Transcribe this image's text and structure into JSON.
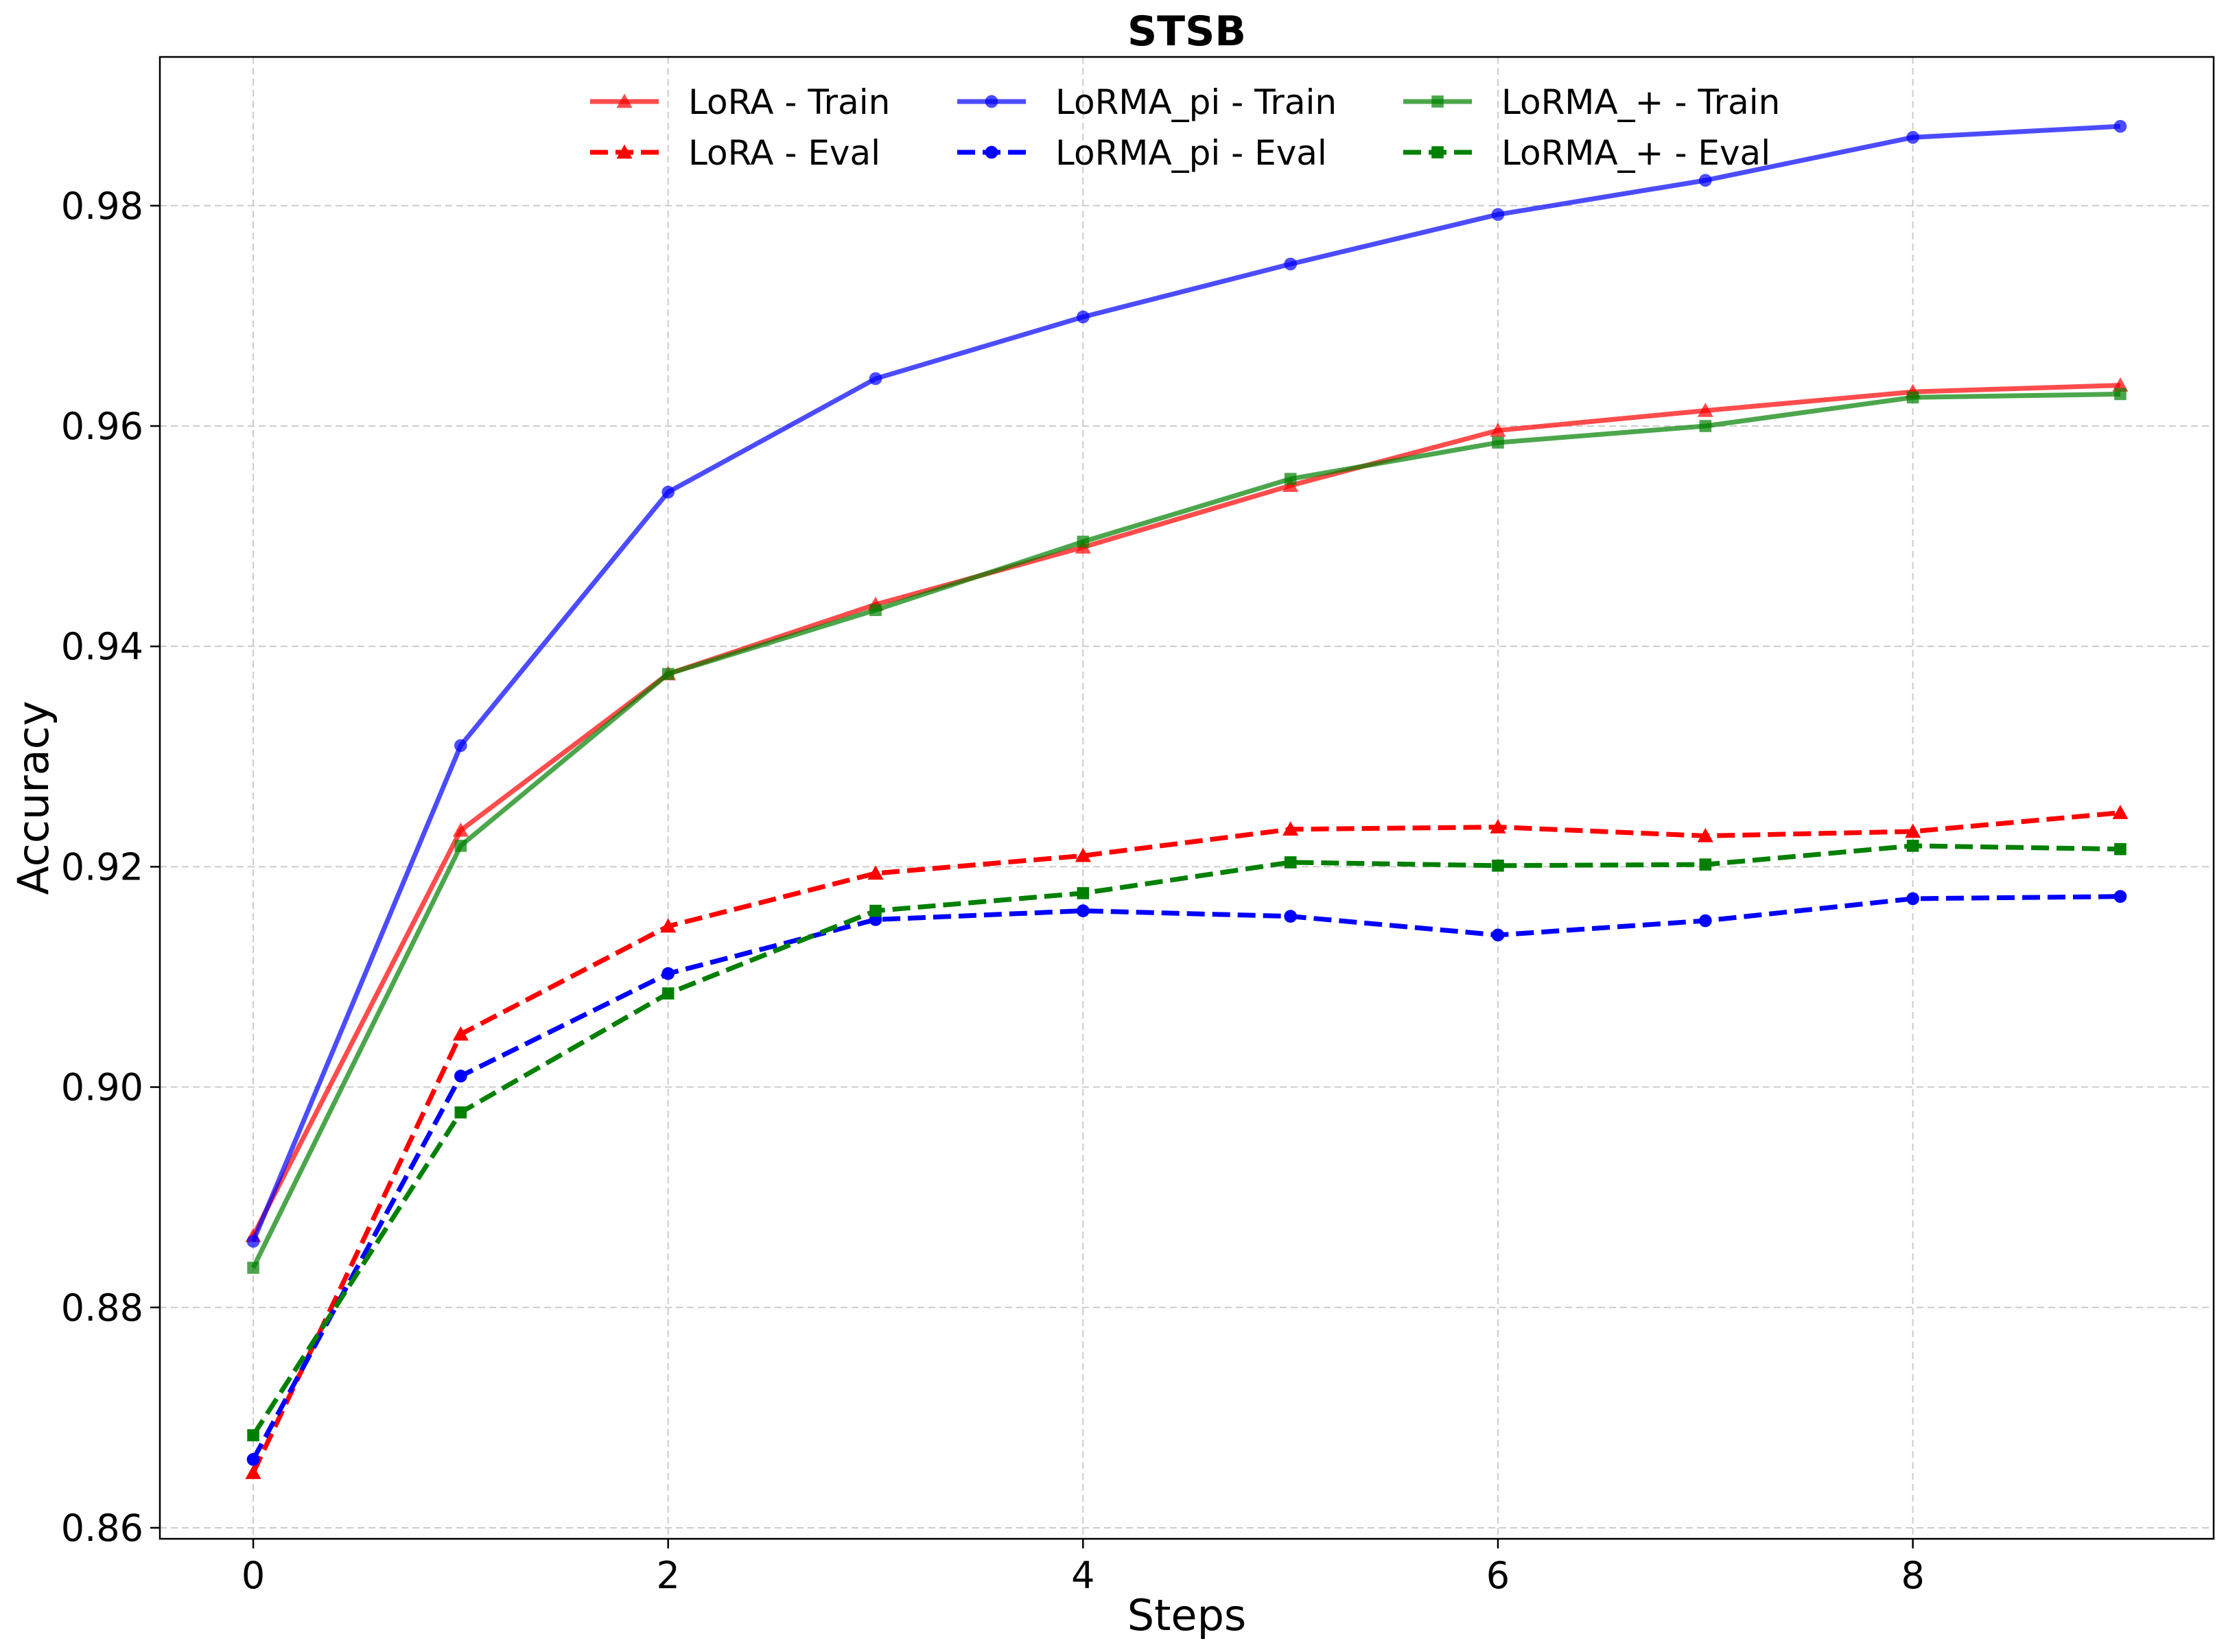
{
  "chart_data": {
    "type": "line",
    "title": "STSB",
    "xlabel": "Steps",
    "ylabel": "Accuracy",
    "xlim": [
      -0.45,
      9.45
    ],
    "ylim": [
      0.859,
      0.9935
    ],
    "xticks": [
      0,
      2,
      4,
      6,
      8
    ],
    "yticks": [
      0.86,
      0.88,
      0.9,
      0.92,
      0.94,
      0.96,
      0.98
    ],
    "ytick_labels": [
      "0.86",
      "0.88",
      "0.90",
      "0.92",
      "0.94",
      "0.96",
      "0.98"
    ],
    "grid": true,
    "legend_position": "top-center",
    "x": [
      0,
      1,
      2,
      3,
      4,
      5,
      6,
      7,
      8,
      9
    ],
    "series": [
      {
        "name": "LoRA - Train",
        "color": "#ff0000",
        "style": "solid",
        "marker": "triangle",
        "opacity": 0.7,
        "values": [
          0.8865,
          0.9233,
          0.9375,
          0.9438,
          0.949,
          0.9546,
          0.9596,
          0.9614,
          0.9631,
          0.9637
        ]
      },
      {
        "name": "LoRA - Eval",
        "color": "#ff0000",
        "style": "dashed",
        "marker": "triangle",
        "opacity": 1.0,
        "values": [
          0.865,
          0.9048,
          0.9146,
          0.9194,
          0.921,
          0.9234,
          0.9236,
          0.9228,
          0.9232,
          0.9249
        ]
      },
      {
        "name": "LoRMA_pi - Train",
        "color": "#0000ff",
        "style": "solid",
        "marker": "circle",
        "opacity": 0.7,
        "values": [
          0.886,
          0.931,
          0.954,
          0.9643,
          0.9699,
          0.9747,
          0.9792,
          0.9823,
          0.9862,
          0.9872
        ]
      },
      {
        "name": "LoRMA_pi - Eval",
        "color": "#0000ff",
        "style": "dashed",
        "marker": "circle",
        "opacity": 1.0,
        "values": [
          0.8662,
          0.901,
          0.9103,
          0.9152,
          0.916,
          0.9155,
          0.9138,
          0.9151,
          0.9171,
          0.9173
        ]
      },
      {
        "name": "LoRMA_+ - Train",
        "color": "#008000",
        "style": "solid",
        "marker": "square",
        "opacity": 0.7,
        "values": [
          0.8836,
          0.9219,
          0.9375,
          0.9433,
          0.9495,
          0.9552,
          0.9585,
          0.96,
          0.9626,
          0.9629
        ]
      },
      {
        "name": "LoRMA_+ - Eval",
        "color": "#008000",
        "style": "dashed",
        "marker": "square",
        "opacity": 1.0,
        "values": [
          0.8684,
          0.8977,
          0.9085,
          0.916,
          0.9176,
          0.9204,
          0.9201,
          0.9202,
          0.9219,
          0.9216
        ]
      }
    ]
  }
}
